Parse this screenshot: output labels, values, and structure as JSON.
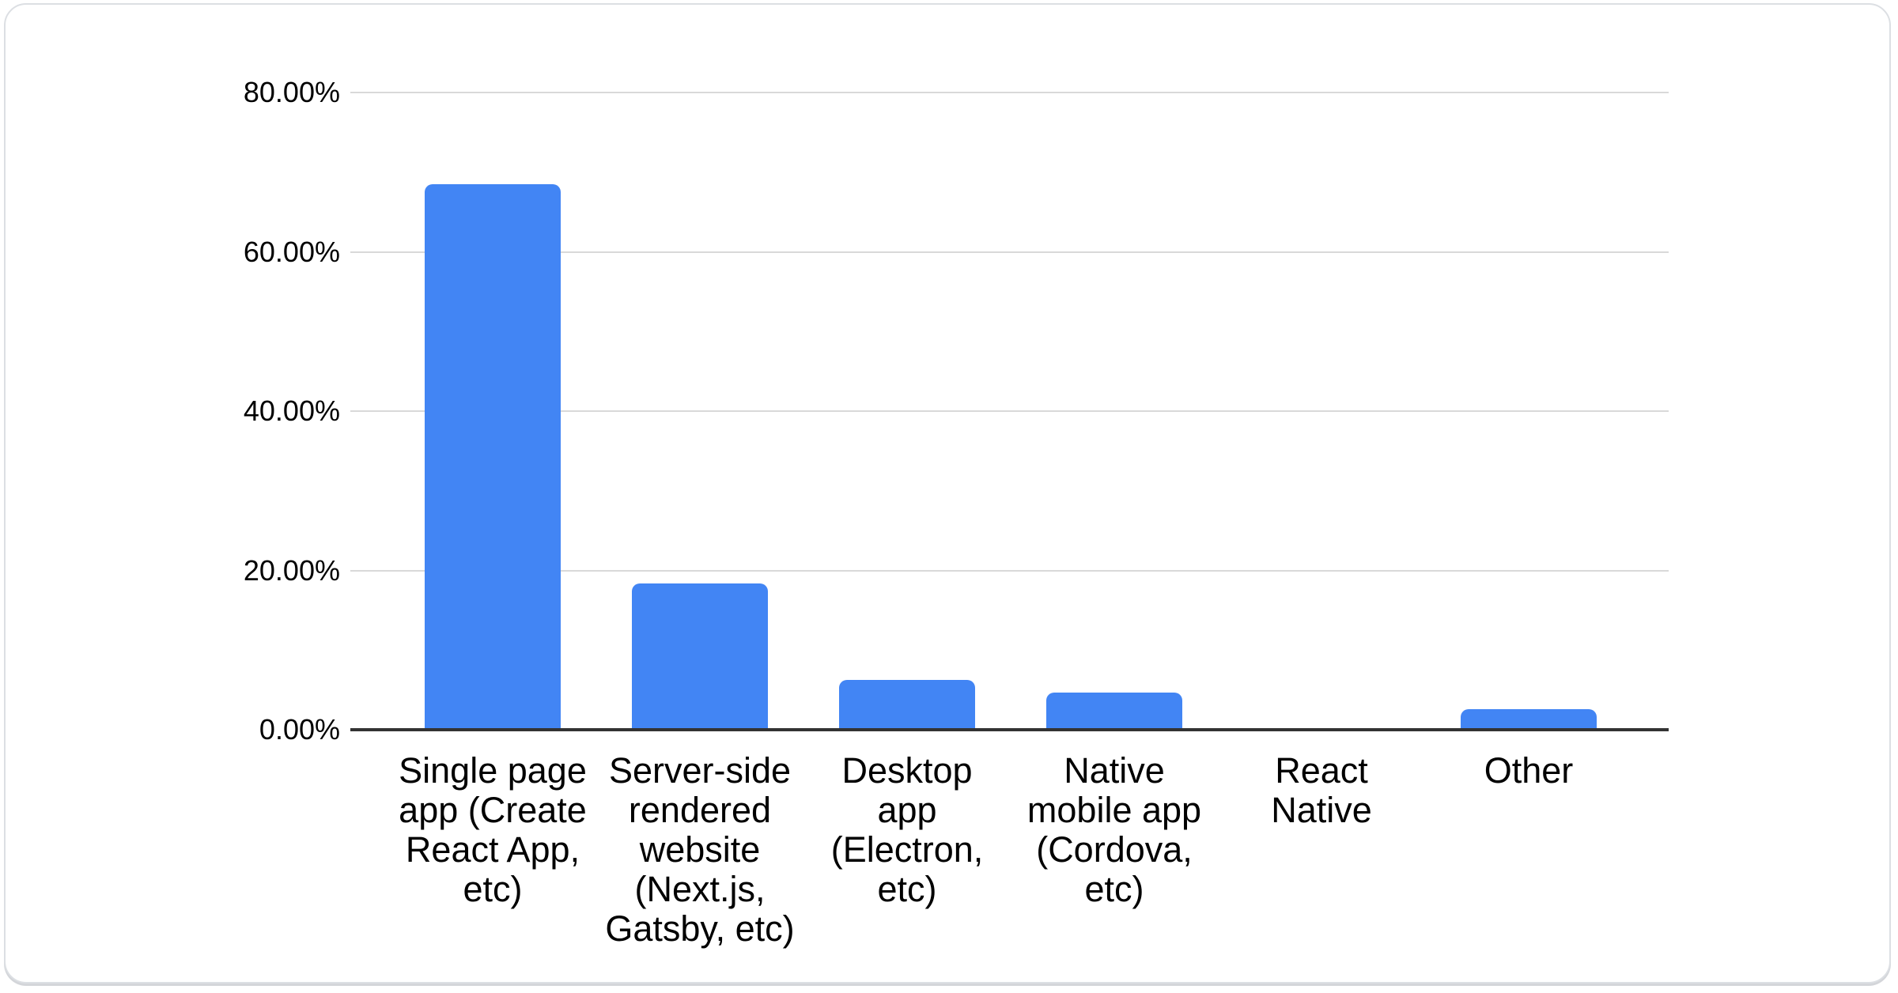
{
  "chart_data": {
    "type": "bar",
    "title": "",
    "xlabel": "",
    "ylabel": "",
    "legend": "none",
    "grid": "on",
    "ylim": [
      0,
      80
    ],
    "y_tick_labels": [
      "80.00%",
      "60.00%",
      "40.00%",
      "20.00%",
      "0.00%"
    ],
    "y_tick_values": [
      80,
      60,
      40,
      20,
      0
    ],
    "categories": [
      "Single page\napp (Create\nReact App,\netc)",
      "Server-side\nrendered\nwebsite\n(Next.js,\nGatsby, etc)",
      "Desktop\napp\n(Electron,\netc)",
      "Native\nmobile app\n(Cordova,\netc)",
      "React\nNative",
      "Other"
    ],
    "values": [
      68.5,
      18.4,
      6.3,
      4.7,
      0,
      2.6
    ]
  },
  "colors": {
    "bar": "#4285f4",
    "gridline": "#d9d9d9",
    "axis_line": "#333333",
    "label_text": "#000000",
    "card_border": "#dcdfe3",
    "card_background": "#ffffff"
  }
}
